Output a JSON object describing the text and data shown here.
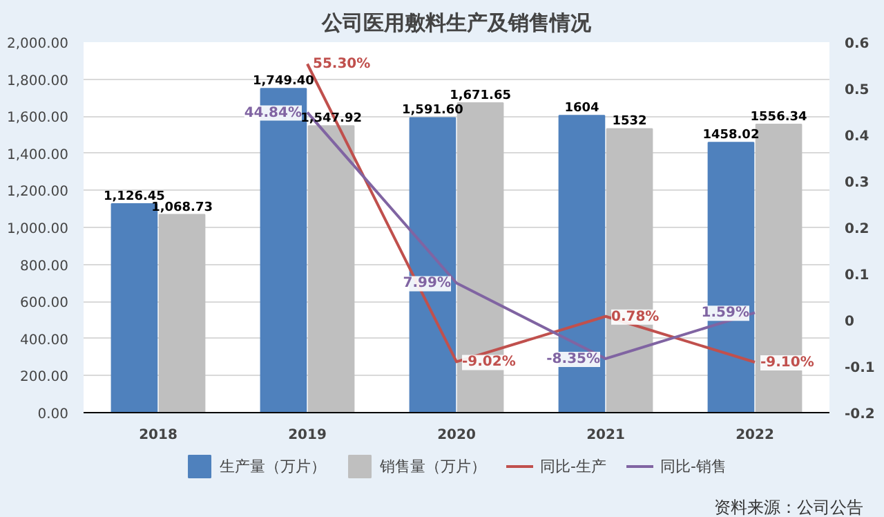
{
  "chart_data": {
    "type": "bar",
    "title": "公司医用敷料生产及销售情况",
    "categories": [
      "2018",
      "2019",
      "2020",
      "2021",
      "2022"
    ],
    "series": [
      {
        "name": "生产量（万片）",
        "color": "#4f81bd",
        "values": [
          1126.45,
          1749.4,
          1591.6,
          1604,
          1458.02
        ],
        "value_labels": [
          "1,126.45",
          "1,749.40",
          "1,591.60",
          "1604",
          "1458.02"
        ]
      },
      {
        "name": "销售量（万片）",
        "color": "#bfbfbf",
        "values": [
          1068.73,
          1547.92,
          1671.65,
          1532,
          1556.34
        ],
        "value_labels": [
          "1,068.73",
          "1,547.92",
          "1,671.65",
          "1532",
          "1556.34"
        ]
      },
      {
        "name": "同比-生产",
        "type": "line",
        "axis": "y2",
        "color": "#c0504d",
        "values": [
          null,
          0.553,
          -0.0902,
          0.0078,
          -0.091
        ],
        "value_labels": [
          null,
          "55.30%",
          "-9.02%",
          "0.78%",
          "-9.10%"
        ]
      },
      {
        "name": "同比-销售",
        "type": "line",
        "axis": "y2",
        "color": "#8064a2",
        "values": [
          null,
          0.4484,
          0.0799,
          -0.0835,
          0.0159
        ],
        "value_labels": [
          null,
          "44.84%",
          "7.99%",
          "-8.35%",
          "1.59%"
        ]
      }
    ],
    "ylim": [
      0,
      2000
    ],
    "yticks": [
      {
        "value": 0,
        "label": "0.00"
      },
      {
        "value": 200,
        "label": "200.00"
      },
      {
        "value": 400,
        "label": "400.00"
      },
      {
        "value": 600,
        "label": "600.00"
      },
      {
        "value": 800,
        "label": "800.00"
      },
      {
        "value": 1000,
        "label": "1,000.00"
      },
      {
        "value": 1200,
        "label": "1,200.00"
      },
      {
        "value": 1400,
        "label": "1,400.00"
      },
      {
        "value": 1600,
        "label": "1,600.00"
      },
      {
        "value": 1800,
        "label": "1,800.00"
      },
      {
        "value": 2000,
        "label": "2,000.00"
      }
    ],
    "y2lim": [
      -0.2,
      0.6
    ],
    "y2ticks": [
      -0.2,
      -0.1,
      0,
      0.1,
      0.2,
      0.3,
      0.4,
      0.5,
      0.6
    ],
    "grid": "y",
    "legend": "bottom",
    "marker": "none",
    "line_style": "solid",
    "annotations": [
      "资料来源：公司公告"
    ]
  }
}
